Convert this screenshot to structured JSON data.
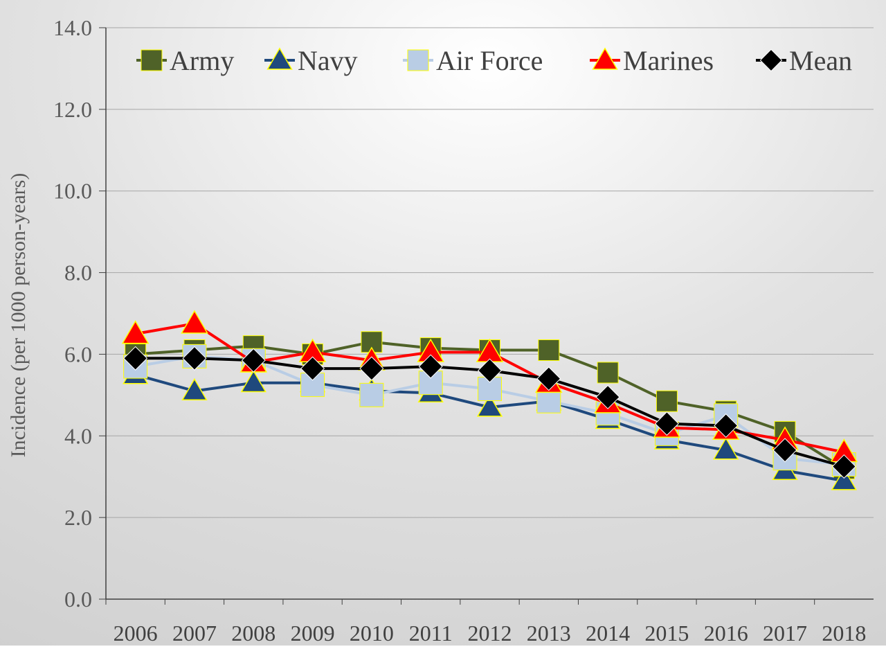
{
  "chart_data": {
    "type": "line",
    "title": "",
    "xlabel": "",
    "ylabel": "Incidence (per 1000 person-years)",
    "x": [
      "2006",
      "2007",
      "2008",
      "2009",
      "2010",
      "2011",
      "2012",
      "2013",
      "2014",
      "2015",
      "2016",
      "2017",
      "2018"
    ],
    "ylim": [
      0,
      14
    ],
    "yticks": [
      "0.0",
      "2.0",
      "4.0",
      "6.0",
      "8.0",
      "10.0",
      "12.0",
      "14.0"
    ],
    "grid": true,
    "legend_position": "top",
    "series": [
      {
        "name": "Army",
        "color": "#4f6228",
        "marker": "square",
        "values": [
          6.0,
          6.1,
          6.2,
          6.0,
          6.3,
          6.15,
          6.1,
          6.1,
          5.55,
          4.85,
          4.6,
          4.1,
          3.2
        ]
      },
      {
        "name": "Navy",
        "color": "#1f497d",
        "marker": "triangle",
        "values": [
          5.5,
          5.1,
          5.3,
          5.3,
          5.1,
          5.05,
          4.7,
          4.85,
          4.4,
          3.9,
          3.65,
          3.15,
          2.9
        ]
      },
      {
        "name": "Air Force",
        "color": "#b9cde5",
        "marker": "square",
        "values": [
          5.7,
          5.95,
          5.85,
          5.25,
          5.0,
          5.3,
          5.15,
          4.85,
          4.55,
          4.05,
          4.5,
          3.45,
          3.3
        ]
      },
      {
        "name": "Marines",
        "color": "#ff0000",
        "marker": "triangle",
        "values": [
          6.5,
          6.75,
          5.8,
          6.05,
          5.85,
          6.05,
          6.05,
          5.3,
          4.8,
          4.2,
          4.15,
          3.9,
          3.6
        ]
      },
      {
        "name": "Mean",
        "color": "#000000",
        "marker": "diamond",
        "values": [
          5.9,
          5.9,
          5.85,
          5.65,
          5.65,
          5.7,
          5.6,
          5.4,
          4.95,
          4.3,
          4.25,
          3.65,
          3.25
        ]
      }
    ]
  }
}
